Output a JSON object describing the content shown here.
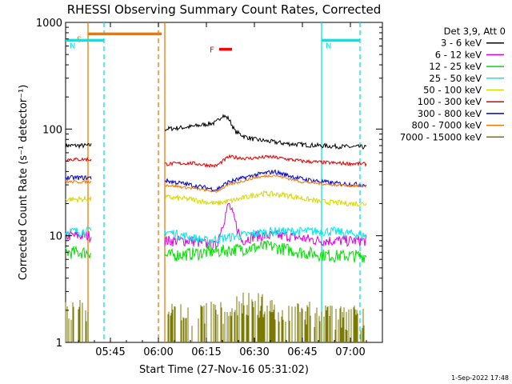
{
  "chart_data": {
    "type": "line",
    "title": "RHESSI Observing Summary Count Rates, Corrected",
    "xlabel": "Start Time (27-Nov-16 05:31:02)",
    "ylabel": "Corrected Count Rate (s⁻¹ detector⁻¹)",
    "y_scale": "log",
    "ylim": [
      1,
      1000
    ],
    "xlim": [
      "05:31",
      "07:10"
    ],
    "x_ticks": [
      "05:45",
      "06:00",
      "06:15",
      "06:30",
      "06:45",
      "07:00"
    ],
    "y_ticks": [
      "1",
      "10",
      "100",
      "1000"
    ],
    "grid": false,
    "legend_position": "right",
    "legend_header": "Det 3,9, Att 0",
    "footer_date": "1-Sep-2022 17:48",
    "gaps": [
      [
        "05:39",
        "06:02"
      ]
    ],
    "series": [
      {
        "name": "3 - 6 keV",
        "color": "#000000",
        "x": [
          "05:31",
          "05:35",
          "05:38",
          "06:02",
          "06:10",
          "06:18",
          "06:20",
          "06:22",
          "06:24",
          "06:27",
          "06:30",
          "06:40",
          "06:50",
          "07:00",
          "07:05"
        ],
        "values": [
          70,
          70,
          70,
          100,
          105,
          115,
          135,
          125,
          95,
          85,
          80,
          73,
          70,
          68,
          68
        ]
      },
      {
        "name": "6 - 12 keV",
        "color": "#e000e0",
        "x": [
          "05:31",
          "05:38",
          "06:02",
          "06:10",
          "06:18",
          "06:22",
          "06:26",
          "06:30",
          "06:40",
          "06:50",
          "07:00",
          "07:05"
        ],
        "values": [
          10,
          10,
          9,
          9,
          8,
          20,
          9,
          10,
          10,
          9,
          9,
          9
        ]
      },
      {
        "name": "12 - 25 keV",
        "color": "#00e000",
        "x": [
          "05:31",
          "05:38",
          "06:02",
          "06:15",
          "06:25",
          "06:35",
          "06:45",
          "06:55",
          "07:05"
        ],
        "values": [
          7,
          7,
          6.5,
          7,
          7.5,
          8,
          7,
          6.5,
          6.5
        ]
      },
      {
        "name": "25 - 50 keV",
        "color": "#00e8e8",
        "x": [
          "05:31",
          "05:38",
          "06:02",
          "06:15",
          "06:25",
          "06:35",
          "06:45",
          "06:55",
          "07:05"
        ],
        "values": [
          11,
          11,
          11,
          9,
          10,
          11,
          11,
          11,
          10
        ]
      },
      {
        "name": "50 - 100 keV",
        "color": "#d8d800",
        "x": [
          "05:31",
          "05:38",
          "06:02",
          "06:10",
          "06:18",
          "06:25",
          "06:32",
          "06:40",
          "06:50",
          "07:00",
          "07:05"
        ],
        "values": [
          22,
          22,
          23,
          22,
          20,
          22,
          25,
          24,
          21,
          20,
          20
        ]
      },
      {
        "name": "100 - 300 keV",
        "color": "#e00000",
        "x": [
          "05:31",
          "05:38",
          "06:02",
          "06:10",
          "06:18",
          "06:22",
          "06:28",
          "06:35",
          "06:45",
          "06:55",
          "07:05"
        ],
        "values": [
          52,
          52,
          47,
          48,
          45,
          55,
          53,
          55,
          50,
          48,
          47
        ]
      },
      {
        "name": "300 - 800 keV",
        "color": "#0000d0",
        "x": [
          "05:31",
          "05:38",
          "06:02",
          "06:10",
          "06:18",
          "06:22",
          "06:30",
          "06:36",
          "06:45",
          "06:55",
          "07:05"
        ],
        "values": [
          35,
          35,
          33,
          30,
          27,
          32,
          37,
          40,
          34,
          31,
          30
        ]
      },
      {
        "name": "800 - 7000 keV",
        "color": "#f07800",
        "x": [
          "05:31",
          "05:38",
          "06:02",
          "06:10",
          "06:18",
          "06:22",
          "06:30",
          "06:36",
          "06:45",
          "06:55",
          "07:05"
        ],
        "values": [
          32,
          32,
          30,
          28,
          26,
          30,
          35,
          37,
          32,
          30,
          29
        ]
      },
      {
        "name": "7000 - 15000 keV",
        "color": "#7a7a00",
        "x": [
          "05:31",
          "05:38",
          "06:02",
          "06:10",
          "06:20",
          "06:25",
          "06:35",
          "06:45",
          "06:55",
          "07:05"
        ],
        "values": [
          1.8,
          1.8,
          1.7,
          1.6,
          1.8,
          2.2,
          2.0,
          1.8,
          1.6,
          1.6
        ]
      }
    ],
    "annotations": [
      {
        "label": "S",
        "color": "#f07800",
        "x_start": "05:38",
        "x_end": "06:01",
        "y": 780
      },
      {
        "label": "N",
        "color": "#00e8e8",
        "x_start": "05:31",
        "x_end": "05:43",
        "y": 680
      },
      {
        "label": "N",
        "color": "#00e8e8",
        "x_start": "06:51",
        "x_end": "07:03",
        "y": 680
      },
      {
        "label": "F",
        "color": "#ff0000",
        "x_start": "06:19",
        "x_end": "06:23",
        "y": 560
      }
    ],
    "vertical_lines": [
      {
        "x": "05:38",
        "color": "#f07800",
        "style": "solid"
      },
      {
        "x": "06:02",
        "color": "#f07800",
        "style": "solid"
      },
      {
        "x": "06:00",
        "color": "#f07800",
        "style": "dashed"
      },
      {
        "x": "05:43",
        "color": "#00e8e8",
        "style": "dashed"
      },
      {
        "x": "06:51",
        "color": "#00e8e8",
        "style": "solid"
      },
      {
        "x": "07:03",
        "color": "#00e8e8",
        "style": "dashed"
      }
    ]
  }
}
